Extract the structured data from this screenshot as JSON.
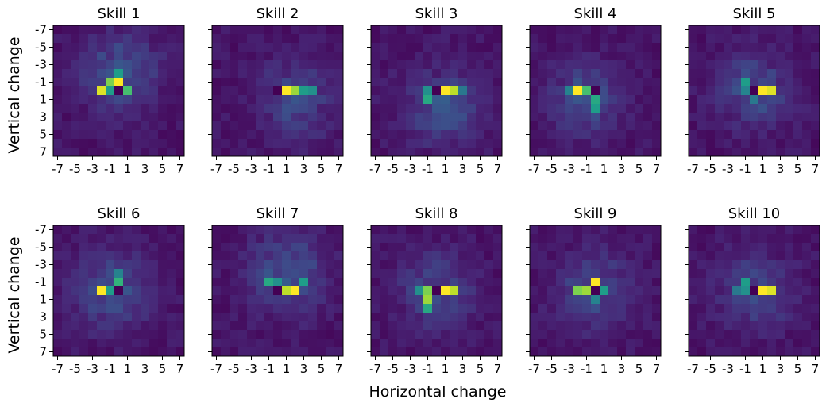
{
  "figure": {
    "xlabel": "Horizontal change",
    "ylabel": "Vertical change"
  },
  "chart_data": {
    "type": "heatmap",
    "title": "",
    "xlabel": "Horizontal change",
    "ylabel": "Vertical change",
    "x_ticks": [
      "-7",
      "-5",
      "-3",
      "-1",
      "1",
      "3",
      "5",
      "7"
    ],
    "y_ticks": [
      "-7",
      "-5",
      "-3",
      "-1",
      "1",
      "3",
      "5",
      "7"
    ],
    "grid_range": [
      -7,
      7
    ],
    "grid": false,
    "colormap": [
      "#440154",
      "#482878",
      "#3e4a89",
      "#31688e",
      "#26828e",
      "#1f9e89",
      "#35b779",
      "#6ece58",
      "#b5de2b",
      "#fde725"
    ],
    "value_range": [
      0,
      1
    ],
    "panels": [
      {
        "name": "Skill 1",
        "hotspots": [
          [
            0,
            -1,
            1.0,
            0.6
          ],
          [
            -2,
            0,
            0.95,
            0.6
          ],
          [
            -1,
            -1,
            0.8,
            0.6
          ],
          [
            1,
            0,
            0.7,
            0.6
          ],
          [
            0,
            -2,
            0.55,
            0.6
          ],
          [
            -1,
            0,
            0.55,
            0.6
          ],
          [
            0,
            0,
            0,
            0
          ]
        ],
        "spread": [
          0,
          -2,
          0.22,
          3.0
        ]
      },
      {
        "name": "Skill 2",
        "hotspots": [
          [
            1,
            0,
            1.0,
            0.6
          ],
          [
            2,
            0,
            0.85,
            0.6
          ],
          [
            3,
            0,
            0.55,
            0.6
          ],
          [
            4,
            0,
            0.5,
            0.6
          ],
          [
            0,
            0,
            0,
            0
          ]
        ],
        "spread": [
          2,
          1,
          0.2,
          2.8
        ]
      },
      {
        "name": "Skill 3",
        "hotspots": [
          [
            1,
            0,
            1.0,
            0.6
          ],
          [
            2,
            0,
            0.9,
            0.6
          ],
          [
            -1,
            1,
            0.6,
            0.6
          ],
          [
            -1,
            0,
            0.5,
            0.6
          ],
          [
            3,
            0,
            0.4,
            0.6
          ],
          [
            0,
            0,
            0,
            0
          ]
        ],
        "spread": [
          1,
          2,
          0.2,
          3.0
        ]
      },
      {
        "name": "Skill 4",
        "hotspots": [
          [
            -2,
            0,
            1.0,
            0.6
          ],
          [
            -1,
            0,
            0.7,
            0.6
          ],
          [
            0,
            1,
            0.6,
            0.6
          ],
          [
            0,
            2,
            0.55,
            0.6
          ],
          [
            -3,
            0,
            0.45,
            0.6
          ],
          [
            0,
            0,
            0,
            0
          ]
        ],
        "spread": [
          -1,
          1,
          0.2,
          2.8
        ]
      },
      {
        "name": "Skill 5",
        "hotspots": [
          [
            1,
            0,
            1.0,
            0.6
          ],
          [
            2,
            0,
            0.95,
            0.6
          ],
          [
            -1,
            -1,
            0.55,
            0.6
          ],
          [
            -1,
            0,
            0.45,
            0.6
          ],
          [
            0,
            1,
            0.4,
            0.6
          ],
          [
            0,
            0,
            0,
            0
          ]
        ],
        "spread": [
          0,
          0,
          0.2,
          2.8
        ]
      },
      {
        "name": "Skill 6",
        "hotspots": [
          [
            -2,
            0,
            1.0,
            0.6
          ],
          [
            0,
            -1,
            0.65,
            0.6
          ],
          [
            -1,
            0,
            0.55,
            0.6
          ],
          [
            0,
            -2,
            0.45,
            0.6
          ],
          [
            0,
            0,
            0,
            0
          ]
        ],
        "spread": [
          -1,
          0,
          0.2,
          3.0
        ]
      },
      {
        "name": "Skill 7",
        "hotspots": [
          [
            2,
            0,
            1.0,
            0.6
          ],
          [
            1,
            0,
            0.9,
            0.6
          ],
          [
            -1,
            -1,
            0.6,
            0.6
          ],
          [
            3,
            -1,
            0.55,
            0.6
          ],
          [
            0,
            -1,
            0.5,
            0.6
          ],
          [
            0,
            0,
            0,
            0
          ]
        ],
        "spread": [
          1,
          -2,
          0.22,
          3.0
        ]
      },
      {
        "name": "Skill 8",
        "hotspots": [
          [
            1,
            0,
            1.0,
            0.6
          ],
          [
            2,
            0,
            0.9,
            0.6
          ],
          [
            -1,
            1,
            0.85,
            0.6
          ],
          [
            -1,
            0,
            0.8,
            0.6
          ],
          [
            -1,
            2,
            0.6,
            0.6
          ],
          [
            -2,
            0,
            0.5,
            0.6
          ],
          [
            0,
            0,
            0,
            0
          ]
        ],
        "spread": [
          0,
          0,
          0.2,
          2.8
        ]
      },
      {
        "name": "Skill 9",
        "hotspots": [
          [
            0,
            -1,
            1.0,
            0.6
          ],
          [
            -1,
            0,
            0.85,
            0.6
          ],
          [
            -2,
            0,
            0.8,
            0.6
          ],
          [
            1,
            0,
            0.55,
            0.6
          ],
          [
            0,
            1,
            0.45,
            0.6
          ],
          [
            0,
            0,
            0,
            0
          ]
        ],
        "spread": [
          0,
          0,
          0.2,
          2.8
        ]
      },
      {
        "name": "Skill 10",
        "hotspots": [
          [
            1,
            0,
            1.0,
            0.6
          ],
          [
            2,
            0,
            0.95,
            0.6
          ],
          [
            -1,
            -1,
            0.55,
            0.6
          ],
          [
            -1,
            0,
            0.5,
            0.6
          ],
          [
            -2,
            0,
            0.4,
            0.6
          ],
          [
            0,
            0,
            0,
            0
          ]
        ],
        "spread": [
          0,
          0,
          0.2,
          2.8
        ]
      }
    ]
  }
}
